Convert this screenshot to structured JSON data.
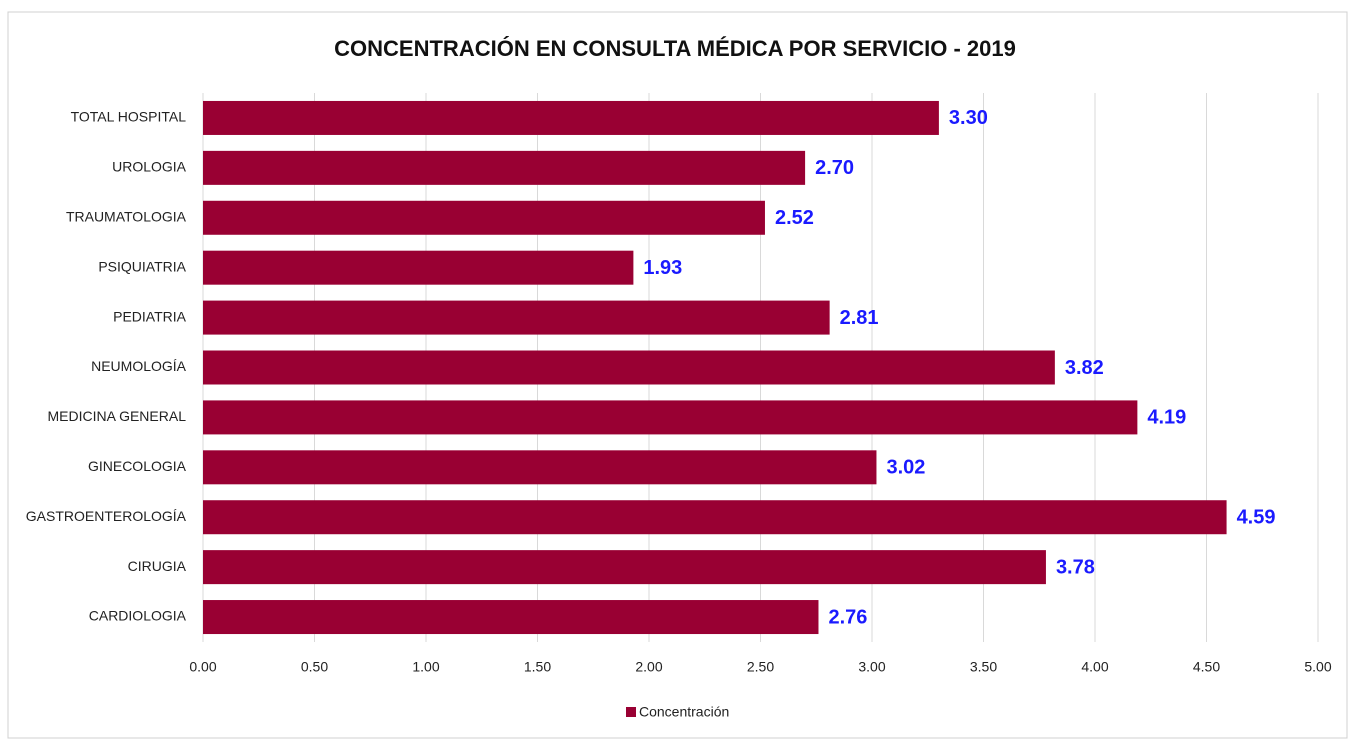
{
  "chart_data": {
    "type": "bar",
    "orientation": "horizontal",
    "title": "CONCENTRACIÓN EN CONSULTA MÉDICA POR SERVICIO - 2019",
    "categories": [
      "TOTAL HOSPITAL",
      "UROLOGIA",
      "TRAUMATOLOGIA",
      "PSIQUIATRIA",
      "PEDIATRIA",
      "NEUMOLOGÍA",
      "MEDICINA GENERAL",
      "GINECOLOGIA",
      "GASTROENTEROLOGÍA",
      "CIRUGIA",
      "CARDIOLOGIA"
    ],
    "series": [
      {
        "name": "Concentración",
        "color": "#990033",
        "values": [
          3.3,
          2.7,
          2.52,
          1.93,
          2.81,
          3.82,
          4.19,
          3.02,
          4.59,
          3.78,
          2.76
        ],
        "value_labels": [
          "3.30",
          "2.70",
          "2.52",
          "1.93",
          "2.81",
          "3.82",
          "4.19",
          "3.02",
          "4.59",
          "3.78",
          "2.76"
        ]
      }
    ],
    "xlim": [
      0,
      5
    ],
    "xticks": [
      {
        "value": 0,
        "label": "0.00"
      },
      {
        "value": 0.5,
        "label": "0.50"
      },
      {
        "value": 1,
        "label": "1.00"
      },
      {
        "value": 1.5,
        "label": "1.50"
      },
      {
        "value": 2,
        "label": "2.00"
      },
      {
        "value": 2.5,
        "label": "2.50"
      },
      {
        "value": 3,
        "label": "3.00"
      },
      {
        "value": 3.5,
        "label": "3.50"
      },
      {
        "value": 4,
        "label": "4.00"
      },
      {
        "value": 4.5,
        "label": "4.50"
      },
      {
        "value": 5,
        "label": "5.00"
      }
    ],
    "grid": true,
    "legend": "bottom",
    "label_color": "#1a1aff"
  }
}
